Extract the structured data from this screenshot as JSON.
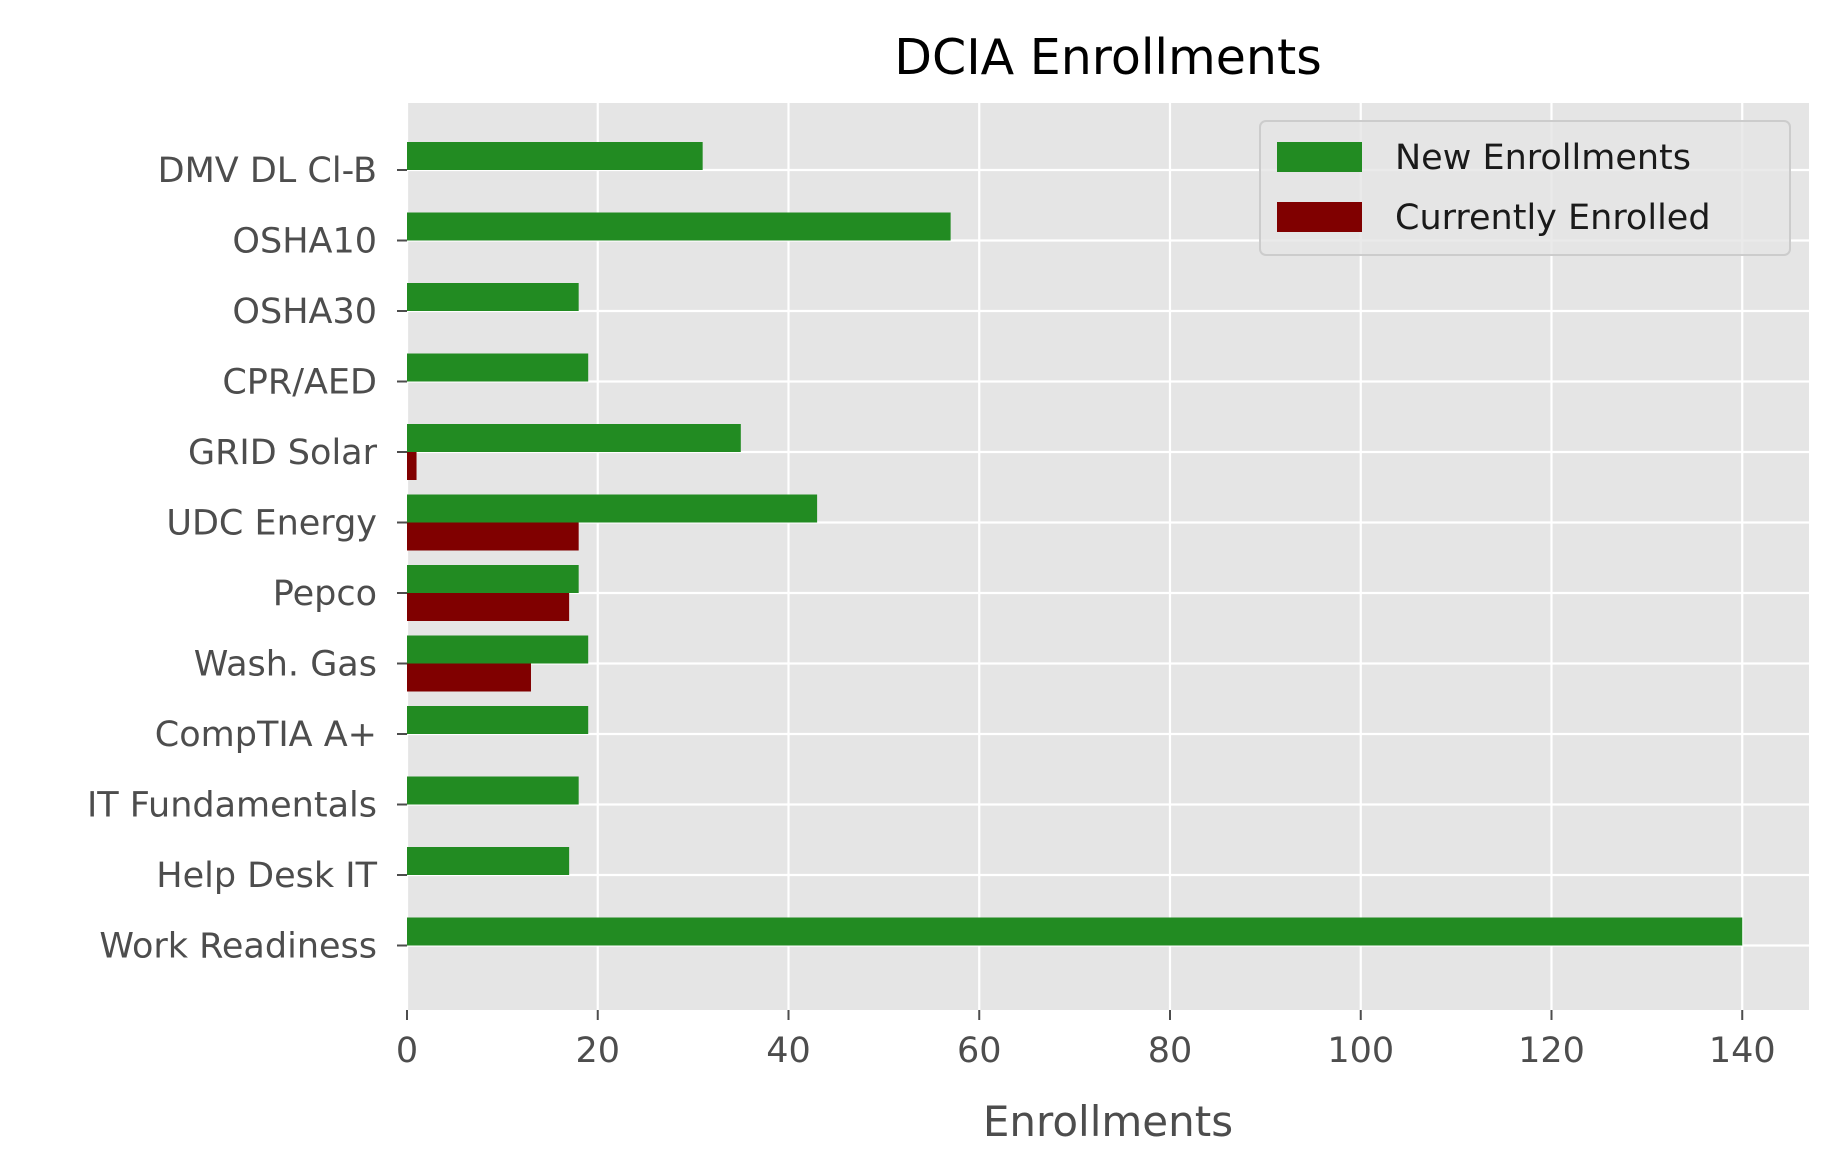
{
  "chart_data": {
    "type": "bar",
    "orientation": "horizontal",
    "title": "DCIA Enrollments",
    "xlabel": "Enrollments",
    "ylabel": "",
    "xlim": [
      0,
      147
    ],
    "xticks": [
      0,
      20,
      40,
      60,
      80,
      100,
      120,
      140
    ],
    "grid": true,
    "legend_position": "top-right",
    "categories": [
      "DMV DL Cl-B",
      "OSHA10",
      "OSHA30",
      "CPR/AED",
      "GRID Solar",
      "UDC Energy",
      "Pepco",
      "Wash. Gas",
      "CompTIA A+",
      "IT Fundamentals",
      "Help Desk IT",
      "Work Readiness"
    ],
    "series": [
      {
        "name": "New Enrollments",
        "color": "#228b22",
        "values": [
          31,
          57,
          18,
          19,
          35,
          43,
          18,
          19,
          19,
          18,
          17,
          140
        ]
      },
      {
        "name": "Currently Enrolled",
        "color": "#800000",
        "values": [
          0,
          0,
          0,
          0,
          1,
          18,
          17,
          13,
          0,
          0,
          0,
          0
        ]
      }
    ]
  },
  "style": {
    "plot_background": "#e5e5e5",
    "grid_color": "#ffffff",
    "tick_color": "#4d4d4d"
  }
}
